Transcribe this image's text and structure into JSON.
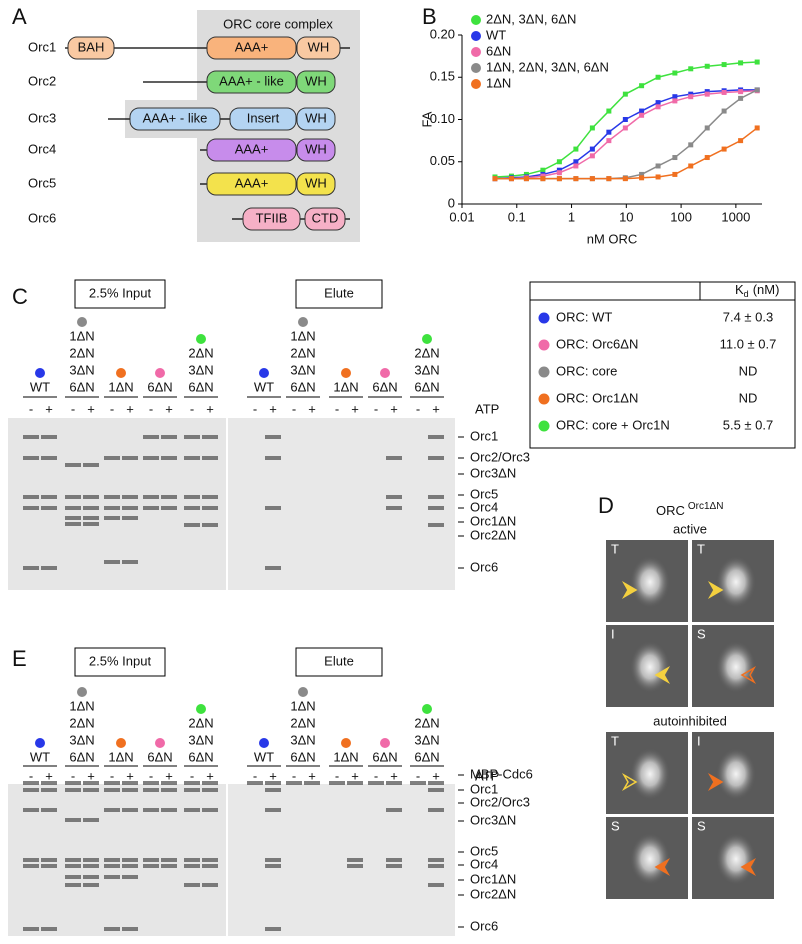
{
  "panel_a": {
    "letter": "A",
    "core_title": "ORC core complex",
    "rows": [
      {
        "name": "Orc1",
        "domains": [
          "BAH",
          "AAA+",
          "WH"
        ]
      },
      {
        "name": "Orc2",
        "domains": [
          "AAA+ - like",
          "WH"
        ]
      },
      {
        "name": "Orc3",
        "domains": [
          "AAA+ - like",
          "Insert",
          "WH"
        ]
      },
      {
        "name": "Orc4",
        "domains": [
          "AAA+",
          "WH"
        ]
      },
      {
        "name": "Orc5",
        "domains": [
          "AAA+",
          "WH"
        ]
      },
      {
        "name": "Orc6",
        "domains": [
          "TFIIB",
          "CTD"
        ]
      }
    ]
  },
  "chart_data": {
    "type": "line",
    "panel_label": "B",
    "xlabel": "nM ORC",
    "ylabel": "FA",
    "xlog": true,
    "x": [
      0.04,
      0.08,
      0.15,
      0.3,
      0.6,
      1.2,
      2.4,
      4.8,
      9.6,
      19,
      38,
      77,
      150,
      300,
      610,
      1220,
      2450
    ],
    "xlim": [
      0.01,
      3000
    ],
    "xticks": [
      0.01,
      0.1,
      1,
      10,
      100,
      1000
    ],
    "ylim": [
      0,
      0.2
    ],
    "yticks": [
      0,
      0.05,
      {
        "value": 0.1,
        "label": "0.10"
      },
      0.15,
      {
        "value": 0.2,
        "label": "0.20"
      }
    ],
    "series": [
      {
        "name": "2ΔN, 3ΔN, 6ΔN",
        "color": "#3ee23e",
        "values": [
          0.032,
          0.033,
          0.035,
          0.04,
          0.05,
          0.065,
          0.09,
          0.11,
          0.13,
          0.14,
          0.15,
          0.155,
          0.16,
          0.163,
          0.165,
          0.167,
          0.168
        ]
      },
      {
        "name": "WT",
        "color": "#2838e8",
        "values": [
          0.03,
          0.031,
          0.032,
          0.035,
          0.04,
          0.05,
          0.065,
          0.085,
          0.1,
          0.11,
          0.12,
          0.127,
          0.13,
          0.133,
          0.134,
          0.135,
          0.135
        ]
      },
      {
        "name": "6ΔN",
        "color": "#f06aa8",
        "values": [
          0.03,
          0.03,
          0.031,
          0.033,
          0.037,
          0.045,
          0.057,
          0.075,
          0.09,
          0.105,
          0.115,
          0.122,
          0.127,
          0.13,
          0.132,
          0.133,
          0.134
        ]
      },
      {
        "name": "1ΔN, 2ΔN, 3ΔN, 6ΔN",
        "color": "#8a8a8a",
        "values": [
          0.03,
          0.03,
          0.03,
          0.03,
          0.03,
          0.03,
          0.03,
          0.03,
          0.031,
          0.035,
          0.045,
          0.055,
          0.07,
          0.09,
          0.11,
          0.125,
          0.135
        ]
      },
      {
        "name": "1ΔN",
        "color": "#f07020",
        "values": [
          0.03,
          0.03,
          0.03,
          0.03,
          0.03,
          0.03,
          0.03,
          0.03,
          0.03,
          0.031,
          0.032,
          0.035,
          0.045,
          0.055,
          0.065,
          0.075,
          0.09
        ]
      }
    ]
  },
  "kd_table": {
    "header": {
      "symbol": "K",
      "subscript": "d",
      "unit": "(nM)"
    },
    "rows": [
      {
        "label": "ORC: WT",
        "color": "#2838e8",
        "value": "7.4 ± 0.3"
      },
      {
        "label": "ORC: Orc6ΔN",
        "color": "#f06aa8",
        "value": "11.0 ± 0.7"
      },
      {
        "label": "ORC: core",
        "color": "#8a8a8a",
        "value": "ND"
      },
      {
        "label": "ORC: Orc1ΔN",
        "color": "#f07020",
        "value": "ND"
      },
      {
        "label": "ORC: core + Orc1N",
        "color": "#3ee23e",
        "value": "5.5 ± 0.7"
      }
    ]
  },
  "lane_groups": [
    {
      "labels": [
        "WT"
      ],
      "color": "#2838e8"
    },
    {
      "labels": [
        "1ΔN",
        "2ΔN",
        "3ΔN",
        "6ΔN"
      ],
      "color": "#8a8a8a"
    },
    {
      "labels": [
        "1ΔN"
      ],
      "color": "#f07020"
    },
    {
      "labels": [
        "6ΔN"
      ],
      "color": "#f06aa8"
    },
    {
      "labels": [
        "2ΔN",
        "3ΔN",
        "6ΔN"
      ],
      "color": "#3ee23e"
    }
  ],
  "lane_signs": [
    "-",
    "+"
  ],
  "panel_c": {
    "letter": "C",
    "input_label": "2.5% Input",
    "elute_label": "Elute",
    "atp_label": "ATP",
    "band_labels": [
      "Orc1",
      "Orc2/Orc3",
      "Orc3ΔN",
      "Orc5",
      "Orc4",
      "Orc1ΔN",
      "Orc2ΔN",
      "Orc6"
    ]
  },
  "panel_e": {
    "letter": "E",
    "input_label": "2.5% Input",
    "elute_label": "Elute",
    "atp_label": "ATP",
    "band_labels": [
      "MBP-Cdc6",
      "Orc1",
      "Orc2/Orc3",
      "Orc3ΔN",
      "Orc5",
      "Orc4",
      "Orc1ΔN",
      "Orc2ΔN",
      "Orc6"
    ]
  },
  "panel_d": {
    "letter": "D",
    "title": "ORC",
    "title_superscript": "Orc1ΔN",
    "active_label": "active",
    "autoinhibited_label": "autoinhibited",
    "active_views": [
      "T",
      "T",
      "I",
      "S"
    ],
    "autoinhibited_views": [
      "T",
      "I",
      "S",
      "S"
    ]
  }
}
